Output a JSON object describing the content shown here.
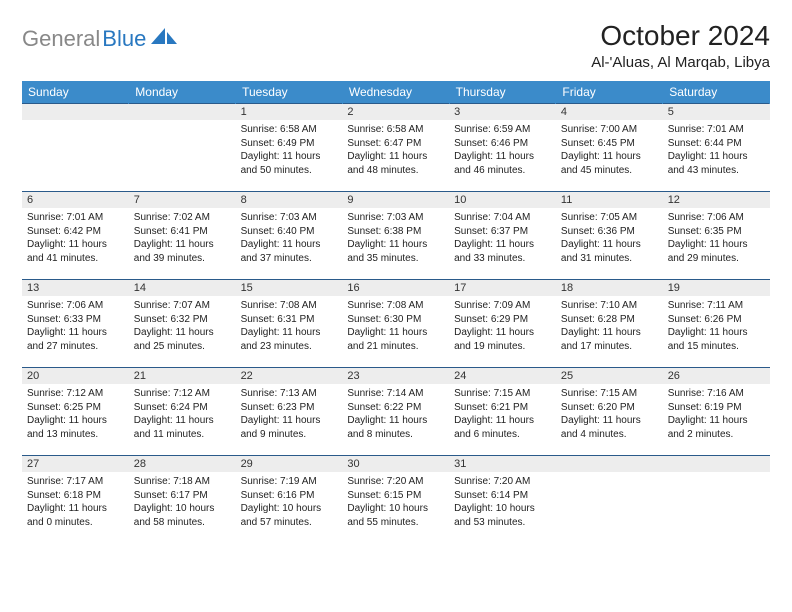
{
  "brand": {
    "part1": "General",
    "part2": "Blue"
  },
  "title": "October 2024",
  "location": "Al-'Aluas, Al Marqab, Libya",
  "colors": {
    "header_bg": "#3b8bca",
    "header_text": "#ffffff",
    "daynum_bg": "#ededed",
    "row_border": "#2a5a8a",
    "logo_gray": "#888888",
    "logo_blue": "#2978c0",
    "page_bg": "#ffffff",
    "body_text": "#222222"
  },
  "weekdays": [
    "Sunday",
    "Monday",
    "Tuesday",
    "Wednesday",
    "Thursday",
    "Friday",
    "Saturday"
  ],
  "weeks": [
    [
      {
        "n": "",
        "sr": "",
        "ss": "",
        "dl": ""
      },
      {
        "n": "",
        "sr": "",
        "ss": "",
        "dl": ""
      },
      {
        "n": "1",
        "sr": "Sunrise: 6:58 AM",
        "ss": "Sunset: 6:49 PM",
        "dl": "Daylight: 11 hours and 50 minutes."
      },
      {
        "n": "2",
        "sr": "Sunrise: 6:58 AM",
        "ss": "Sunset: 6:47 PM",
        "dl": "Daylight: 11 hours and 48 minutes."
      },
      {
        "n": "3",
        "sr": "Sunrise: 6:59 AM",
        "ss": "Sunset: 6:46 PM",
        "dl": "Daylight: 11 hours and 46 minutes."
      },
      {
        "n": "4",
        "sr": "Sunrise: 7:00 AM",
        "ss": "Sunset: 6:45 PM",
        "dl": "Daylight: 11 hours and 45 minutes."
      },
      {
        "n": "5",
        "sr": "Sunrise: 7:01 AM",
        "ss": "Sunset: 6:44 PM",
        "dl": "Daylight: 11 hours and 43 minutes."
      }
    ],
    [
      {
        "n": "6",
        "sr": "Sunrise: 7:01 AM",
        "ss": "Sunset: 6:42 PM",
        "dl": "Daylight: 11 hours and 41 minutes."
      },
      {
        "n": "7",
        "sr": "Sunrise: 7:02 AM",
        "ss": "Sunset: 6:41 PM",
        "dl": "Daylight: 11 hours and 39 minutes."
      },
      {
        "n": "8",
        "sr": "Sunrise: 7:03 AM",
        "ss": "Sunset: 6:40 PM",
        "dl": "Daylight: 11 hours and 37 minutes."
      },
      {
        "n": "9",
        "sr": "Sunrise: 7:03 AM",
        "ss": "Sunset: 6:38 PM",
        "dl": "Daylight: 11 hours and 35 minutes."
      },
      {
        "n": "10",
        "sr": "Sunrise: 7:04 AM",
        "ss": "Sunset: 6:37 PM",
        "dl": "Daylight: 11 hours and 33 minutes."
      },
      {
        "n": "11",
        "sr": "Sunrise: 7:05 AM",
        "ss": "Sunset: 6:36 PM",
        "dl": "Daylight: 11 hours and 31 minutes."
      },
      {
        "n": "12",
        "sr": "Sunrise: 7:06 AM",
        "ss": "Sunset: 6:35 PM",
        "dl": "Daylight: 11 hours and 29 minutes."
      }
    ],
    [
      {
        "n": "13",
        "sr": "Sunrise: 7:06 AM",
        "ss": "Sunset: 6:33 PM",
        "dl": "Daylight: 11 hours and 27 minutes."
      },
      {
        "n": "14",
        "sr": "Sunrise: 7:07 AM",
        "ss": "Sunset: 6:32 PM",
        "dl": "Daylight: 11 hours and 25 minutes."
      },
      {
        "n": "15",
        "sr": "Sunrise: 7:08 AM",
        "ss": "Sunset: 6:31 PM",
        "dl": "Daylight: 11 hours and 23 minutes."
      },
      {
        "n": "16",
        "sr": "Sunrise: 7:08 AM",
        "ss": "Sunset: 6:30 PM",
        "dl": "Daylight: 11 hours and 21 minutes."
      },
      {
        "n": "17",
        "sr": "Sunrise: 7:09 AM",
        "ss": "Sunset: 6:29 PM",
        "dl": "Daylight: 11 hours and 19 minutes."
      },
      {
        "n": "18",
        "sr": "Sunrise: 7:10 AM",
        "ss": "Sunset: 6:28 PM",
        "dl": "Daylight: 11 hours and 17 minutes."
      },
      {
        "n": "19",
        "sr": "Sunrise: 7:11 AM",
        "ss": "Sunset: 6:26 PM",
        "dl": "Daylight: 11 hours and 15 minutes."
      }
    ],
    [
      {
        "n": "20",
        "sr": "Sunrise: 7:12 AM",
        "ss": "Sunset: 6:25 PM",
        "dl": "Daylight: 11 hours and 13 minutes."
      },
      {
        "n": "21",
        "sr": "Sunrise: 7:12 AM",
        "ss": "Sunset: 6:24 PM",
        "dl": "Daylight: 11 hours and 11 minutes."
      },
      {
        "n": "22",
        "sr": "Sunrise: 7:13 AM",
        "ss": "Sunset: 6:23 PM",
        "dl": "Daylight: 11 hours and 9 minutes."
      },
      {
        "n": "23",
        "sr": "Sunrise: 7:14 AM",
        "ss": "Sunset: 6:22 PM",
        "dl": "Daylight: 11 hours and 8 minutes."
      },
      {
        "n": "24",
        "sr": "Sunrise: 7:15 AM",
        "ss": "Sunset: 6:21 PM",
        "dl": "Daylight: 11 hours and 6 minutes."
      },
      {
        "n": "25",
        "sr": "Sunrise: 7:15 AM",
        "ss": "Sunset: 6:20 PM",
        "dl": "Daylight: 11 hours and 4 minutes."
      },
      {
        "n": "26",
        "sr": "Sunrise: 7:16 AM",
        "ss": "Sunset: 6:19 PM",
        "dl": "Daylight: 11 hours and 2 minutes."
      }
    ],
    [
      {
        "n": "27",
        "sr": "Sunrise: 7:17 AM",
        "ss": "Sunset: 6:18 PM",
        "dl": "Daylight: 11 hours and 0 minutes."
      },
      {
        "n": "28",
        "sr": "Sunrise: 7:18 AM",
        "ss": "Sunset: 6:17 PM",
        "dl": "Daylight: 10 hours and 58 minutes."
      },
      {
        "n": "29",
        "sr": "Sunrise: 7:19 AM",
        "ss": "Sunset: 6:16 PM",
        "dl": "Daylight: 10 hours and 57 minutes."
      },
      {
        "n": "30",
        "sr": "Sunrise: 7:20 AM",
        "ss": "Sunset: 6:15 PM",
        "dl": "Daylight: 10 hours and 55 minutes."
      },
      {
        "n": "31",
        "sr": "Sunrise: 7:20 AM",
        "ss": "Sunset: 6:14 PM",
        "dl": "Daylight: 10 hours and 53 minutes."
      },
      {
        "n": "",
        "sr": "",
        "ss": "",
        "dl": ""
      },
      {
        "n": "",
        "sr": "",
        "ss": "",
        "dl": ""
      }
    ]
  ]
}
